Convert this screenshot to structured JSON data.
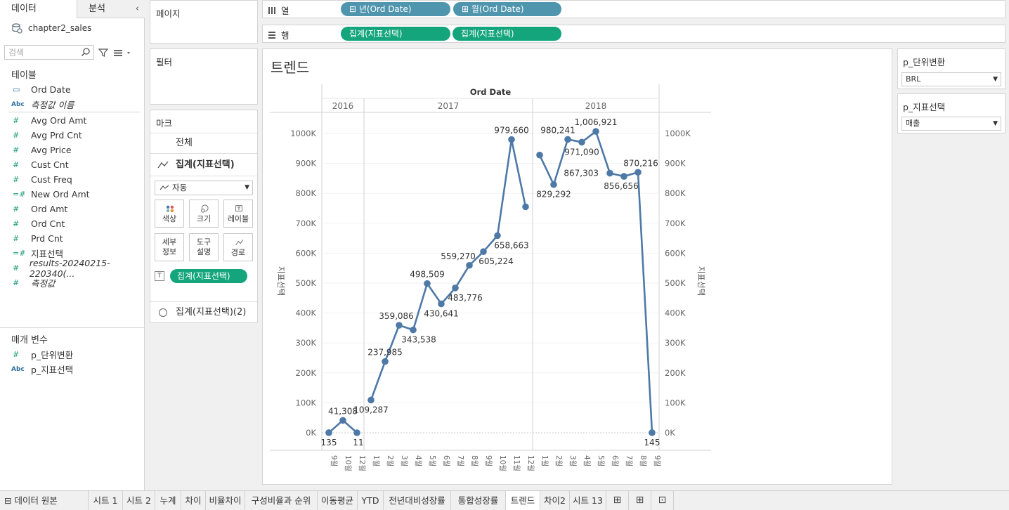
{
  "left_pane": {
    "tabs": [
      {
        "label": "데이터"
      },
      {
        "label": "분석"
      }
    ],
    "collapse_glyph": "‹",
    "datasource": "chapter2_sales",
    "search_placeholder": "검색",
    "tables_title": "테이블",
    "dimensions": [
      {
        "icon": "date-icon",
        "glyph": "▭",
        "name": "Ord Date",
        "italic": false
      },
      {
        "icon": "abc-icon",
        "glyph": "Abc",
        "name": "측정값 이름",
        "italic": true
      }
    ],
    "measures": [
      {
        "glyph": "#",
        "name": "Avg Ord Amt",
        "italic": false
      },
      {
        "glyph": "#",
        "name": "Avg Prd Cnt",
        "italic": false
      },
      {
        "glyph": "#",
        "name": "Avg Price",
        "italic": false
      },
      {
        "glyph": "#",
        "name": "Cust Cnt",
        "italic": false
      },
      {
        "glyph": "#",
        "name": "Cust Freq",
        "italic": false
      },
      {
        "glyph": "=#",
        "name": "New Ord Amt",
        "italic": false
      },
      {
        "glyph": "#",
        "name": "Ord Amt",
        "italic": false
      },
      {
        "glyph": "#",
        "name": "Ord Cnt",
        "italic": false
      },
      {
        "glyph": "#",
        "name": "Prd Cnt",
        "italic": false
      },
      {
        "glyph": "=#",
        "name": "지표선택",
        "italic": false
      },
      {
        "glyph": "#",
        "name": "results-20240215-220340(...",
        "italic": true
      },
      {
        "glyph": "#",
        "name": "측정값",
        "italic": true
      }
    ],
    "params_title": "매개 변수",
    "params": [
      {
        "glyph": "#",
        "name": "p_단위변환"
      },
      {
        "glyph": "Abc",
        "name": "p_지표선택"
      }
    ]
  },
  "cards": {
    "pages": "페이지",
    "filters": "필터",
    "marks": {
      "title": "마크",
      "all": "전체",
      "agg_label": "집계(지표선택)",
      "mark_type": "자동",
      "buttons": [
        {
          "name": "color-button",
          "icon": "color-dots-icon",
          "label": "색상"
        },
        {
          "name": "size-button",
          "icon": "size-icon",
          "label": "크기"
        },
        {
          "name": "label-button",
          "icon": "label-icon",
          "label": "레이블"
        },
        {
          "name": "detail-button",
          "label": "세부\n정보"
        },
        {
          "name": "tooltip-button",
          "label": "도구\n설명"
        },
        {
          "name": "path-button",
          "icon": "path-icon",
          "label": "경로"
        }
      ],
      "label_pill": "집계(지표선택)",
      "agg2_label": "집계(지표선택)(2)"
    }
  },
  "shelves": {
    "columns": {
      "label": "열",
      "pills": [
        "년(Ord Date)",
        "월(Ord Date)"
      ]
    },
    "rows": {
      "label": "행",
      "pills": [
        "집계(지표선택)",
        "집계(지표선택)"
      ]
    }
  },
  "params_panel": [
    {
      "title": "p_단위변환",
      "value": "BRL"
    },
    {
      "title": "p_지표선택",
      "value": "매출"
    }
  ],
  "sheet_tabs": [
    {
      "label": "데이터 원본",
      "active": false
    },
    {
      "label": "시트 1",
      "active": false
    },
    {
      "label": "시트 2",
      "active": false
    },
    {
      "label": "누계",
      "active": false
    },
    {
      "label": "차이",
      "active": false
    },
    {
      "label": "비율차이",
      "active": false
    },
    {
      "label": "구성비율과 순위",
      "active": false
    },
    {
      "label": "이동평균",
      "active": false
    },
    {
      "label": "YTD",
      "active": false
    },
    {
      "label": "전년대비성장률",
      "active": false
    },
    {
      "label": "통합성장률",
      "active": false
    },
    {
      "label": "트렌드",
      "active": true
    },
    {
      "label": "차이2",
      "active": false
    },
    {
      "label": "시트 13",
      "active": false
    }
  ],
  "chart_data": {
    "type": "line",
    "title": "트렌드",
    "header": "Ord Date",
    "ylabel": "지표선택",
    "ylim": [
      0,
      1000000
    ],
    "yticks": [
      "0K",
      "100K",
      "200K",
      "300K",
      "400K",
      "500K",
      "600K",
      "700K",
      "800K",
      "900K",
      "1000K"
    ],
    "panels": [
      {
        "year": "2016",
        "months": [
          "9월",
          "10월",
          "12월"
        ],
        "values": [
          135,
          41308,
          11
        ],
        "labels": [
          "135",
          "41,308",
          "11"
        ]
      },
      {
        "year": "2017",
        "months": [
          "1월",
          "2월",
          "3월",
          "4월",
          "5월",
          "6월",
          "7월",
          "8월",
          "9월",
          "10월",
          "11월",
          "12월"
        ],
        "values": [
          109287,
          237985,
          359086,
          343538,
          498509,
          430641,
          483776,
          559270,
          605224,
          658663,
          979660,
          755000
        ],
        "labels": [
          "109,287",
          "237,985",
          "359,086",
          "343,538",
          "498,509",
          "430,641",
          "483,776",
          "559,270",
          "605,224",
          "658,663",
          "979,660",
          ""
        ]
      },
      {
        "year": "2018",
        "months": [
          "1월",
          "2월",
          "3월",
          "4월",
          "5월",
          "6월",
          "7월",
          "8월",
          "9월"
        ],
        "values": [
          928000,
          829292,
          980241,
          971090,
          1006921,
          867303,
          856656,
          870216,
          145
        ],
        "labels": [
          "",
          "829,292",
          "980,241",
          "971,090",
          "1,006,921",
          "867,303",
          "856,656",
          "870,216",
          "145"
        ]
      }
    ],
    "colors": {
      "line": "#4e79a7"
    }
  }
}
